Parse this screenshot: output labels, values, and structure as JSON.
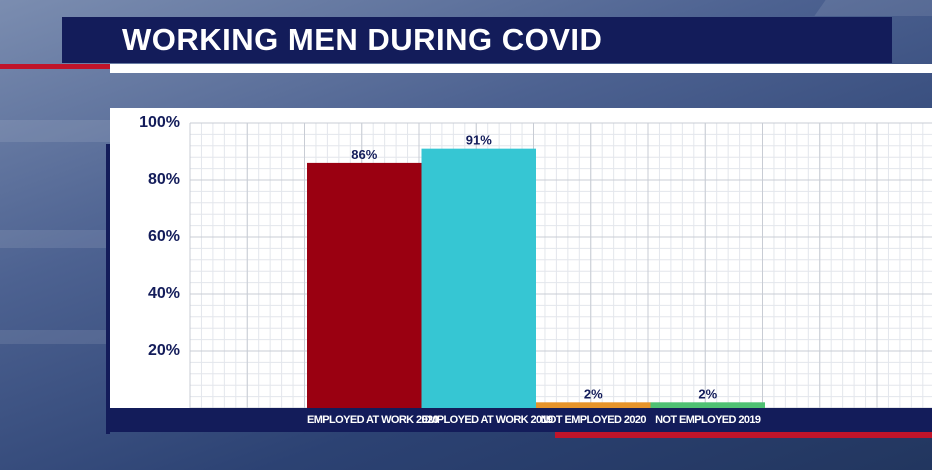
{
  "title": "WORKING MEN DURING COVID",
  "colors": {
    "title_bar": "#131c5a",
    "accent_red": "#c0142a",
    "grid": "#c8ccd4"
  },
  "chart_data": {
    "type": "bar",
    "categories": [
      "EMPLOYED AT WORK 2020",
      "EMPLOYED AT WORK 2019",
      "NOT EMPLOYED 2020",
      "NOT EMPLOYED 2019"
    ],
    "values": [
      86,
      91,
      2,
      2
    ],
    "data_labels": [
      "86%",
      "91%",
      "2%",
      "2%"
    ],
    "bar_colors": [
      "#9a0011",
      "#36c6d3",
      "#e6942a",
      "#4fc173"
    ],
    "y_ticks": [
      "20%",
      "40%",
      "60%",
      "80%",
      "100%"
    ],
    "ylim": [
      0,
      100
    ],
    "grid": true,
    "title": "",
    "xlabel": "",
    "ylabel": ""
  }
}
